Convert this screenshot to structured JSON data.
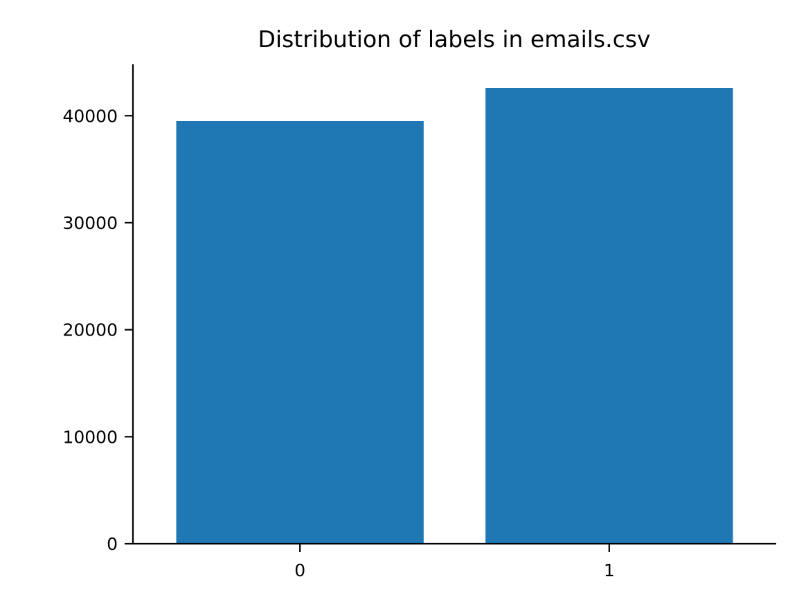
{
  "chart_data": {
    "type": "bar",
    "title": "Distribution of labels in emails.csv",
    "xlabel": "",
    "ylabel": "",
    "categories": [
      "0",
      "1"
    ],
    "values": [
      39500,
      42600
    ],
    "ylim": [
      0,
      44800
    ],
    "yticks": [
      0,
      10000,
      20000,
      30000,
      40000
    ],
    "bar_color": "#1f77b4",
    "grid": false,
    "legend": "none"
  }
}
